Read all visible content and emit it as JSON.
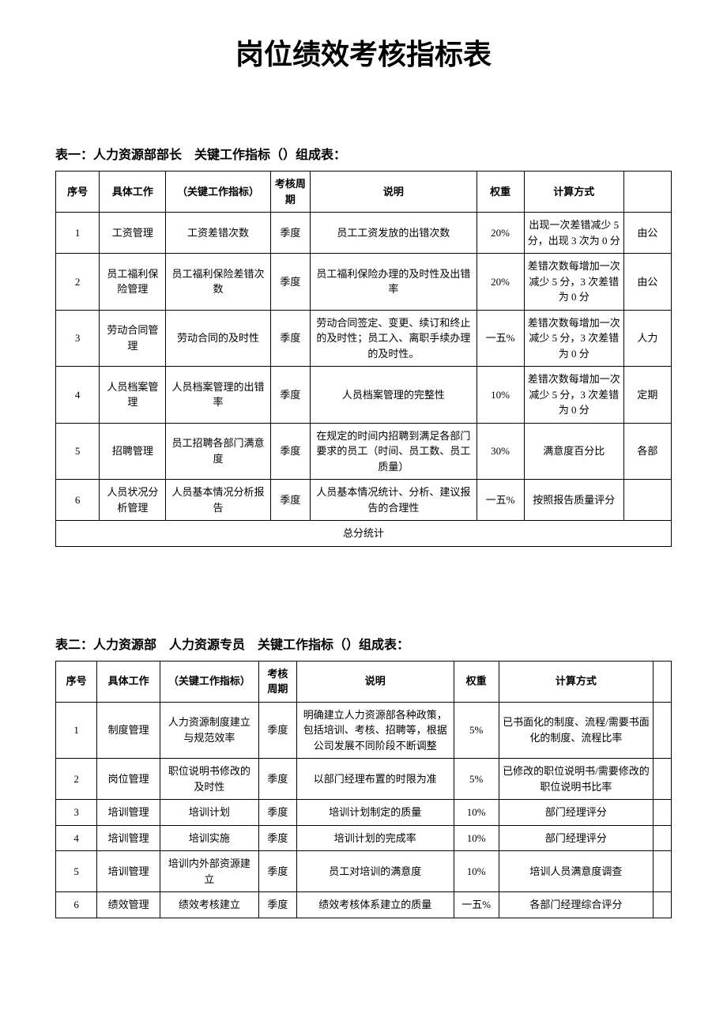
{
  "title": "岗位绩效考核指标表",
  "colors": {
    "background": "#ffffff",
    "text": "#000000",
    "border": "#000000"
  },
  "typography": {
    "title_fontsize": 36,
    "heading_fontsize": 16,
    "body_fontsize": 13,
    "title_family": "SimHei",
    "body_family": "SimSun"
  },
  "table1": {
    "heading": "表一：人力资源部部长　关键工作指标（）组成表：",
    "headers": {
      "seq": "序号",
      "work": "具体工作",
      "kpi": "（关键工作指标）",
      "period": "考核周期",
      "desc": "说明",
      "weight": "权重",
      "calc": "计算方式",
      "extra": ""
    },
    "rows": [
      {
        "seq": "1",
        "work": "工资管理",
        "kpi": "工资差错次数",
        "period": "季度",
        "desc": "员工工资发放的出错次数",
        "weight": "20%",
        "calc": "出现一次差错减少 5 分，出现 3 次为 0 分",
        "extra": "由公"
      },
      {
        "seq": "2",
        "work": "员工福利保险管理",
        "kpi": "员工福利保险差错次数",
        "period": "季度",
        "desc": "员工福利保险办理的及时性及出错率",
        "weight": "20%",
        "calc": "差错次数每增加一次减少 5 分，3 次差错为 0 分",
        "extra": "由公"
      },
      {
        "seq": "3",
        "work": "劳动合同管理",
        "kpi": "劳动合同的及时性",
        "period": "季度",
        "desc": "劳动合同签定、变更、续订和终止的及时性；员工入、离职手续办理的及时性。",
        "weight": "一五%",
        "calc": "差错次数每增加一次减少 5 分，3 次差错为 0 分",
        "extra": "人力"
      },
      {
        "seq": "4",
        "work": "人员档案管理",
        "kpi": "人员档案管理的出错率",
        "period": "季度",
        "desc": "人员档案管理的完整性",
        "weight": "10%",
        "calc": "差错次数每增加一次减少 5 分，3 次差错为 0 分",
        "extra": "定期"
      },
      {
        "seq": "5",
        "work": "招聘管理",
        "kpi": "员工招聘各部门满意度",
        "period": "季度",
        "desc": "在规定的时间内招聘到满足各部门要求的员工（时间、员工数、员工质量）",
        "weight": "30%",
        "calc": "满意度百分比",
        "extra": "各部"
      },
      {
        "seq": "6",
        "work": "人员状况分析管理",
        "kpi": "人员基本情况分析报告",
        "period": "季度",
        "desc": "人员基本情况统计、分析、建议报告的合理性",
        "weight": "一五%",
        "calc": "按照报告质量评分",
        "extra": ""
      }
    ],
    "total_label": "总分统计"
  },
  "table2": {
    "heading": "表二：人力资源部　人力资源专员　关键工作指标（）组成表：",
    "headers": {
      "seq": "序号",
      "work": "具体工作",
      "kpi": "（关键工作指标）",
      "period": "考核周期",
      "desc": "说明",
      "weight": "权重",
      "calc": "计算方式",
      "extra": ""
    },
    "rows": [
      {
        "seq": "1",
        "work": "制度管理",
        "kpi": "人力资源制度建立与规范效率",
        "period": "季度",
        "desc": "明确建立人力资源部各种政策，包括培训、考核、招聘等，根据公司发展不同阶段不断调整",
        "weight": "5%",
        "calc": "已书面化的制度、流程/需要书面化的制度、流程比率",
        "extra": ""
      },
      {
        "seq": "2",
        "work": "岗位管理",
        "kpi": "职位说明书修改的及时性",
        "period": "季度",
        "desc": "以部门经理布置的时限为准",
        "weight": "5%",
        "calc": "已修改的职位说明书/需要修改的职位说明书比率",
        "extra": ""
      },
      {
        "seq": "3",
        "work": "培训管理",
        "kpi": "培训计划",
        "period": "季度",
        "desc": "培训计划制定的质量",
        "weight": "10%",
        "calc": "部门经理评分",
        "extra": ""
      },
      {
        "seq": "4",
        "work": "培训管理",
        "kpi": "培训实施",
        "period": "季度",
        "desc": "培训计划的完成率",
        "weight": "10%",
        "calc": "部门经理评分",
        "extra": ""
      },
      {
        "seq": "5",
        "work": "培训管理",
        "kpi": "培训内外部资源建立",
        "period": "季度",
        "desc": "员工对培训的满意度",
        "weight": "10%",
        "calc": "培训人员满意度调查",
        "extra": ""
      },
      {
        "seq": "6",
        "work": "绩效管理",
        "kpi": "绩效考核建立",
        "period": "季度",
        "desc": "绩效考核体系建立的质量",
        "weight": "一五%",
        "calc": "各部门经理综合评分",
        "extra": ""
      }
    ]
  }
}
